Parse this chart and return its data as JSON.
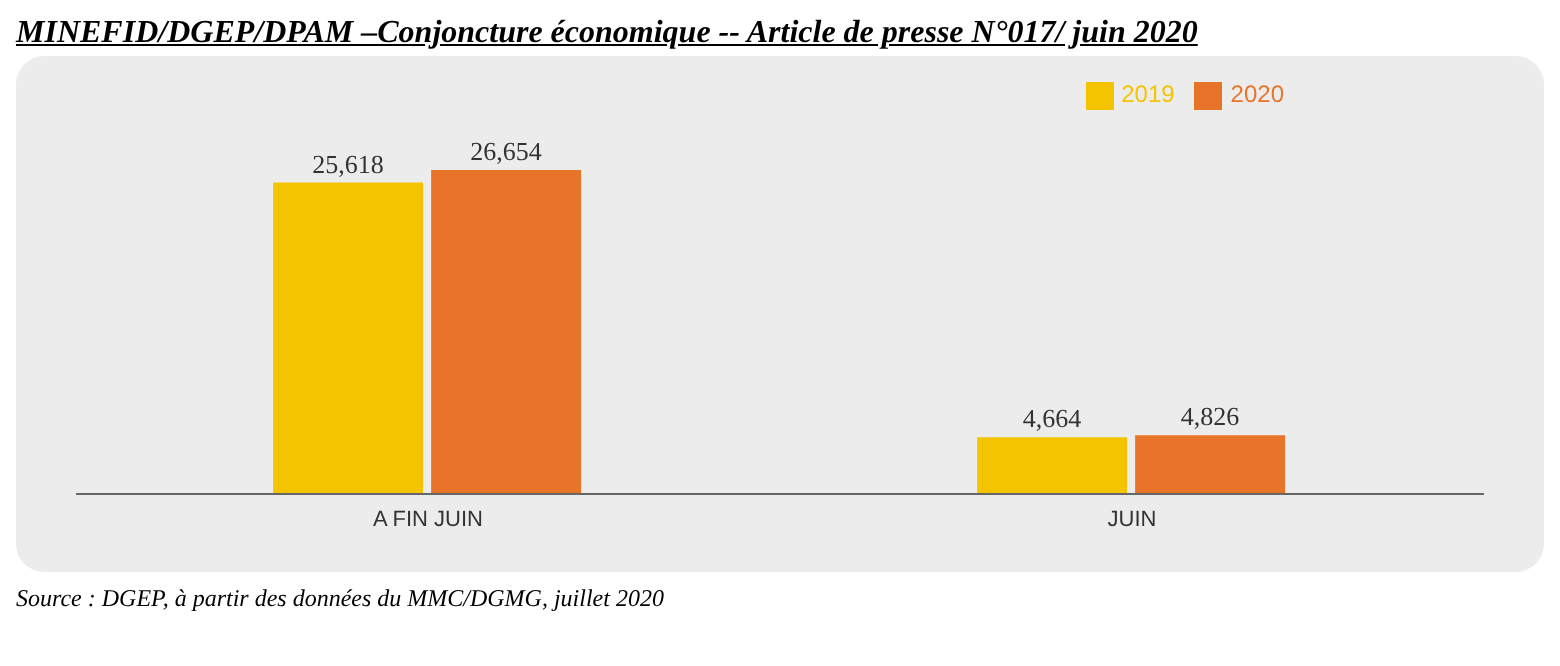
{
  "chart_data": {
    "type": "bar",
    "title": "MINEFID/DGEP/DPAM –Conjoncture économique -- Article de presse N°017/ juin 2020",
    "categories": [
      "A FIN JUIN",
      "JUIN"
    ],
    "series": [
      {
        "name": "2019",
        "color": "#f5c400",
        "values": [
          25618,
          4664
        ],
        "value_labels": [
          "25,618",
          "4,664"
        ]
      },
      {
        "name": "2020",
        "color": "#e8742a",
        "values": [
          26654,
          4826
        ],
        "value_labels": [
          "26,654",
          "4,826"
        ]
      }
    ],
    "legend": "top right",
    "annotations": [
      "Source : DGEP, à partir des données du MMC/DGMG, juillet 2020"
    ]
  }
}
